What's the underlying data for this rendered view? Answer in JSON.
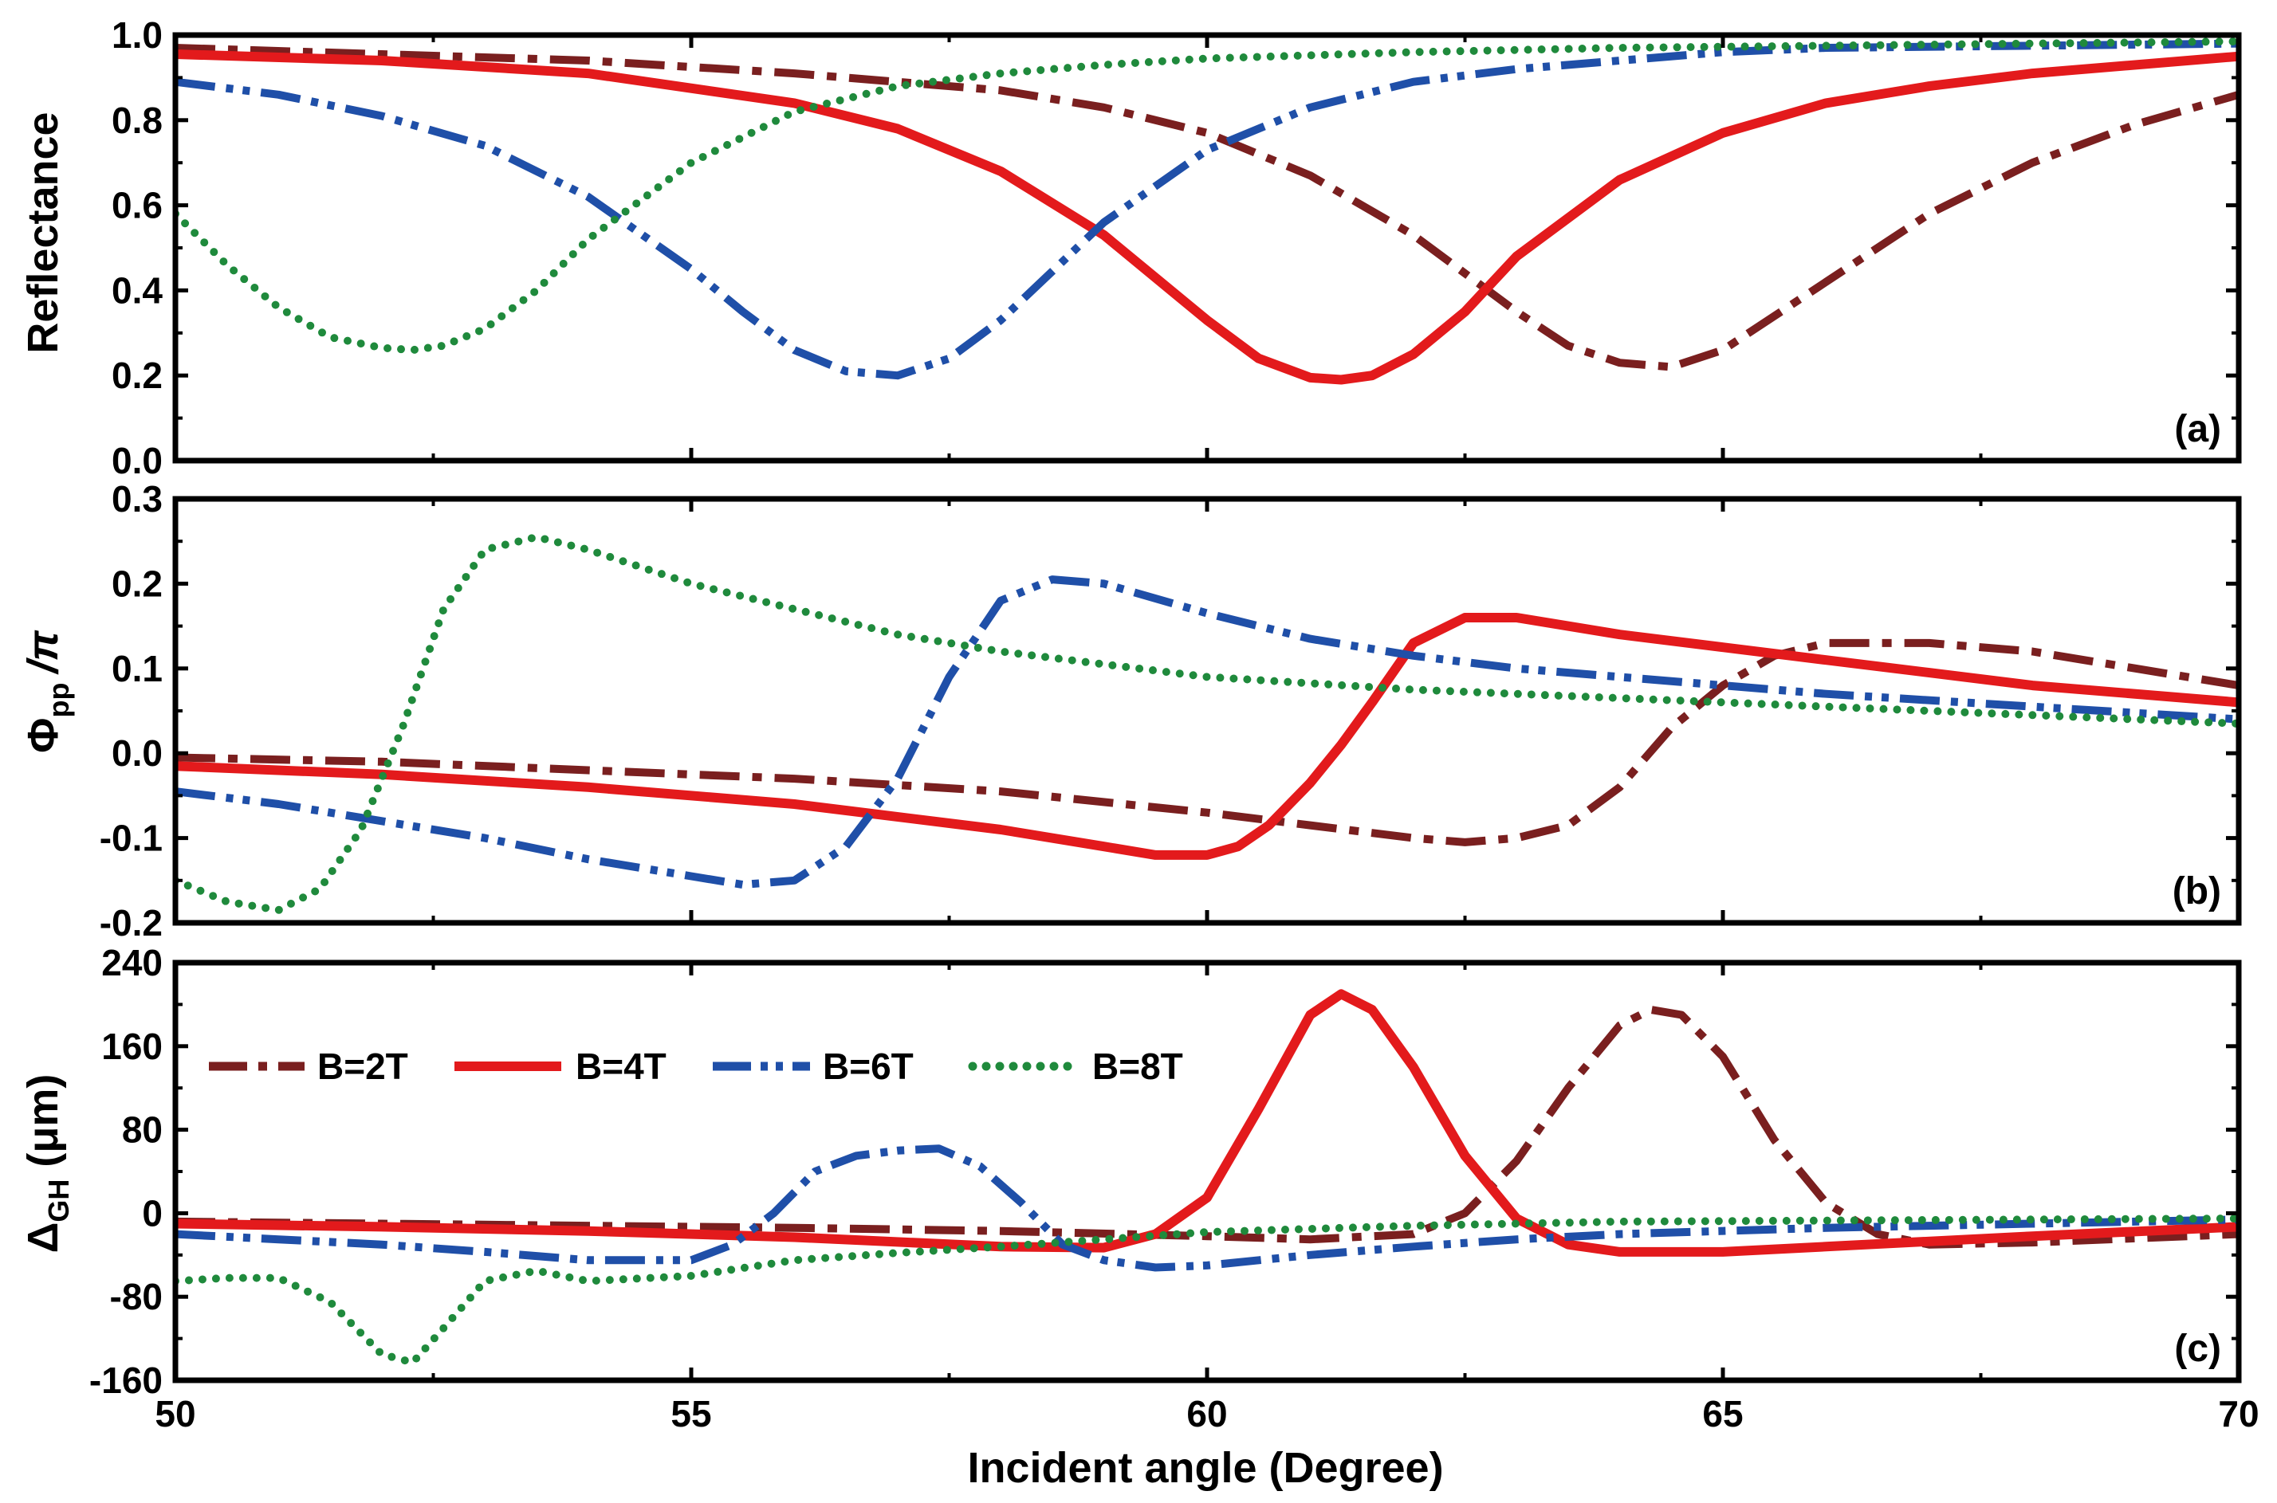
{
  "chart_data": [
    {
      "type": "line",
      "panel_tag": "(a)",
      "xlabel": "",
      "ylabel": "Reflectance",
      "xlim": [
        50,
        70
      ],
      "ylim": [
        0.0,
        1.0
      ],
      "x_ticks": [
        "50",
        "55",
        "60",
        "65",
        "70"
      ],
      "y_ticks": [
        "0.0",
        "0.2",
        "0.4",
        "0.6",
        "0.8",
        "1.0"
      ],
      "grid": false,
      "series": [
        {
          "name": "B=2T",
          "color": "#7a1f1f",
          "dash": "dash-dot",
          "x": [
            50,
            52,
            54,
            56,
            58,
            59,
            60,
            61,
            62,
            63,
            63.5,
            64,
            64.5,
            65,
            66,
            67,
            68,
            69,
            70
          ],
          "y": [
            0.97,
            0.955,
            0.94,
            0.91,
            0.87,
            0.83,
            0.77,
            0.67,
            0.53,
            0.35,
            0.27,
            0.23,
            0.22,
            0.26,
            0.42,
            0.58,
            0.7,
            0.79,
            0.86
          ]
        },
        {
          "name": "B=4T",
          "color": "#e31a1c",
          "dash": "solid",
          "x": [
            50,
            52,
            54,
            56,
            57,
            58,
            59,
            60,
            60.5,
            61,
            61.3,
            61.6,
            62,
            62.5,
            63,
            64,
            65,
            66,
            67,
            68,
            70
          ],
          "y": [
            0.955,
            0.94,
            0.91,
            0.84,
            0.78,
            0.68,
            0.53,
            0.33,
            0.24,
            0.195,
            0.19,
            0.2,
            0.25,
            0.35,
            0.48,
            0.66,
            0.77,
            0.84,
            0.88,
            0.91,
            0.95
          ]
        },
        {
          "name": "B=6T",
          "color": "#1f4fa8",
          "dash": "dash-dot-dot",
          "x": [
            50,
            51,
            52,
            53,
            54,
            55,
            55.5,
            56,
            56.5,
            57,
            57.5,
            58,
            59,
            60,
            61,
            62,
            63,
            64,
            65,
            66,
            68,
            70
          ],
          "y": [
            0.89,
            0.86,
            0.81,
            0.74,
            0.62,
            0.45,
            0.35,
            0.26,
            0.21,
            0.2,
            0.24,
            0.33,
            0.56,
            0.73,
            0.83,
            0.89,
            0.92,
            0.94,
            0.96,
            0.97,
            0.975,
            0.98
          ]
        },
        {
          "name": "B=8T",
          "color": "#1f8a3c",
          "dash": "dotted",
          "x": [
            50,
            50.5,
            51,
            51.5,
            52,
            52.3,
            52.6,
            53,
            53.5,
            54,
            54.5,
            55,
            56,
            57,
            58,
            59,
            60,
            62,
            64,
            66,
            68,
            70
          ],
          "y": [
            0.58,
            0.46,
            0.36,
            0.29,
            0.265,
            0.26,
            0.27,
            0.31,
            0.4,
            0.52,
            0.61,
            0.7,
            0.82,
            0.88,
            0.91,
            0.93,
            0.945,
            0.96,
            0.97,
            0.975,
            0.98,
            0.985
          ]
        }
      ]
    },
    {
      "type": "line",
      "panel_tag": "(b)",
      "xlabel": "",
      "ylabel_main": "Φ",
      "ylabel_sub": "pp",
      "ylabel_suffix": "/π",
      "xlim": [
        50,
        70
      ],
      "ylim": [
        -0.2,
        0.3
      ],
      "x_ticks": [
        "50",
        "55",
        "60",
        "65",
        "70"
      ],
      "y_ticks": [
        "-0.2",
        "-0.1",
        "0.0",
        "0.1",
        "0.2",
        "0.3"
      ],
      "grid": false,
      "series": [
        {
          "name": "B=2T",
          "color": "#7a1f1f",
          "dash": "dash-dot",
          "x": [
            50,
            52,
            54,
            56,
            58,
            60,
            61,
            62,
            62.5,
            63,
            63.5,
            64,
            64.5,
            65,
            65.5,
            66,
            67,
            68,
            69,
            70
          ],
          "y": [
            -0.005,
            -0.01,
            -0.02,
            -0.03,
            -0.045,
            -0.07,
            -0.085,
            -0.1,
            -0.105,
            -0.1,
            -0.085,
            -0.04,
            0.03,
            0.08,
            0.115,
            0.13,
            0.13,
            0.12,
            0.1,
            0.08
          ]
        },
        {
          "name": "B=4T",
          "color": "#e31a1c",
          "dash": "solid",
          "x": [
            50,
            52,
            54,
            56,
            58,
            59,
            59.5,
            60,
            60.3,
            60.6,
            61,
            61.3,
            61.6,
            62,
            62.5,
            63,
            64,
            65,
            66,
            67,
            68,
            70
          ],
          "y": [
            -0.015,
            -0.025,
            -0.04,
            -0.06,
            -0.09,
            -0.11,
            -0.12,
            -0.12,
            -0.11,
            -0.085,
            -0.035,
            0.01,
            0.06,
            0.13,
            0.16,
            0.16,
            0.14,
            0.125,
            0.11,
            0.095,
            0.08,
            0.06
          ]
        },
        {
          "name": "B=6T",
          "color": "#1f4fa8",
          "dash": "dash-dot-dot",
          "x": [
            50,
            51,
            52,
            53,
            54,
            55,
            55.5,
            56,
            56.5,
            57,
            57.5,
            58,
            58.5,
            59,
            60,
            61,
            62,
            63,
            64,
            65,
            66,
            68,
            70
          ],
          "y": [
            -0.045,
            -0.06,
            -0.08,
            -0.1,
            -0.125,
            -0.145,
            -0.155,
            -0.15,
            -0.11,
            -0.03,
            0.09,
            0.18,
            0.205,
            0.2,
            0.165,
            0.135,
            0.115,
            0.1,
            0.09,
            0.08,
            0.07,
            0.055,
            0.04
          ]
        },
        {
          "name": "B=8T",
          "color": "#1f8a3c",
          "dash": "dotted",
          "x": [
            50,
            50.5,
            51,
            51.4,
            51.8,
            52.2,
            52.6,
            53,
            53.5,
            54,
            55,
            56,
            57,
            58,
            59,
            60,
            62,
            64,
            66,
            68,
            70
          ],
          "y": [
            -0.15,
            -0.175,
            -0.185,
            -0.16,
            -0.09,
            0.03,
            0.17,
            0.24,
            0.255,
            0.24,
            0.2,
            0.17,
            0.14,
            0.12,
            0.105,
            0.09,
            0.075,
            0.065,
            0.055,
            0.045,
            0.035
          ]
        }
      ]
    },
    {
      "type": "line",
      "panel_tag": "(c)",
      "xlabel": "Incident angle (Degree)",
      "ylabel_main": "Δ",
      "ylabel_sub": "GH",
      "ylabel_suffix": " (μm)",
      "xlim": [
        50,
        70
      ],
      "ylim": [
        -160,
        240
      ],
      "x_ticks": [
        "50",
        "55",
        "60",
        "65",
        "70"
      ],
      "y_ticks": [
        "-160",
        "-80",
        "0",
        "80",
        "160",
        "240"
      ],
      "grid": false,
      "legend_position": "top-left",
      "series": [
        {
          "name": "B=2T",
          "color": "#7a1f1f",
          "dash": "dash-dot",
          "x": [
            50,
            52,
            54,
            56,
            58,
            60,
            61,
            62,
            62.5,
            63,
            63.5,
            64,
            64.3,
            64.6,
            65,
            65.5,
            66,
            66.5,
            67,
            68,
            70
          ],
          "y": [
            -8,
            -10,
            -12,
            -14,
            -17,
            -22,
            -25,
            -20,
            0,
            50,
            120,
            180,
            195,
            190,
            150,
            70,
            10,
            -20,
            -30,
            -28,
            -20
          ]
        },
        {
          "name": "B=4T",
          "color": "#e31a1c",
          "dash": "solid",
          "x": [
            50,
            52,
            54,
            56,
            58,
            59,
            59.5,
            60,
            60.5,
            61,
            61.3,
            61.6,
            62,
            62.5,
            63,
            63.5,
            64,
            65,
            66,
            68,
            70
          ],
          "y": [
            -10,
            -13,
            -17,
            -23,
            -32,
            -33,
            -20,
            15,
            100,
            190,
            210,
            195,
            140,
            55,
            -5,
            -30,
            -37,
            -37,
            -32,
            -22,
            -13
          ]
        },
        {
          "name": "B=6T",
          "color": "#1f4fa8",
          "dash": "dash-dot-dot",
          "x": [
            50,
            51,
            52,
            53,
            54,
            55,
            55.4,
            55.8,
            56.2,
            56.6,
            57,
            57.4,
            57.8,
            58.2,
            58.6,
            59,
            59.5,
            60,
            61,
            62,
            63,
            64,
            66,
            68,
            70
          ],
          "y": [
            -20,
            -25,
            -30,
            -37,
            -45,
            -45,
            -30,
            0,
            40,
            55,
            60,
            62,
            45,
            10,
            -30,
            -45,
            -52,
            -50,
            -40,
            -32,
            -25,
            -20,
            -14,
            -10,
            -6
          ]
        },
        {
          "name": "B=8T",
          "color": "#1f8a3c",
          "dash": "dotted",
          "x": [
            50,
            50.5,
            51,
            51.5,
            52,
            52.3,
            52.6,
            53,
            53.5,
            54,
            55,
            56,
            57,
            58,
            59,
            60,
            62,
            64,
            66,
            68,
            70
          ],
          "y": [
            -65,
            -62,
            -62,
            -85,
            -135,
            -143,
            -110,
            -65,
            -55,
            -65,
            -60,
            -45,
            -38,
            -32,
            -25,
            -18,
            -12,
            -8,
            -7,
            -6,
            -5
          ]
        }
      ]
    }
  ]
}
